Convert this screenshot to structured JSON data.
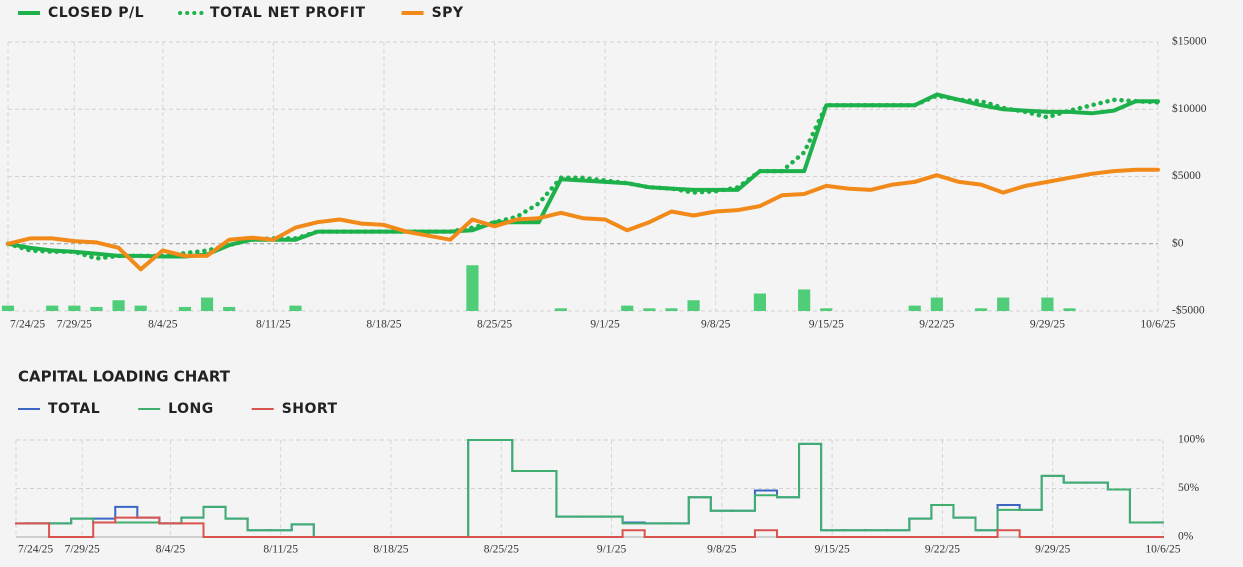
{
  "chart_data": [
    {
      "type": "line",
      "x": [
        "7/24/25",
        "7/25/25",
        "7/28/25",
        "7/29/25",
        "7/30/25",
        "7/31/25",
        "8/1/25",
        "8/4/25",
        "8/5/25",
        "8/6/25",
        "8/7/25",
        "8/8/25",
        "8/11/25",
        "8/12/25",
        "8/13/25",
        "8/14/25",
        "8/15/25",
        "8/18/25",
        "8/19/25",
        "8/20/25",
        "8/21/25",
        "8/22/25",
        "8/25/25",
        "8/26/25",
        "8/27/25",
        "8/28/25",
        "8/29/25",
        "9/1/25",
        "9/2/25",
        "9/3/25",
        "9/4/25",
        "9/5/25",
        "9/8/25",
        "9/9/25",
        "9/10/25",
        "9/11/25",
        "9/12/25",
        "9/15/25",
        "9/16/25",
        "9/17/25",
        "9/18/25",
        "9/19/25",
        "9/22/25",
        "9/23/25",
        "9/24/25",
        "9/25/25",
        "9/26/25",
        "9/29/25",
        "9/30/25",
        "10/1/25",
        "10/2/25",
        "10/3/25",
        "10/6/25"
      ],
      "xticks": [
        "7/24/25",
        "7/29/25",
        "8/4/25",
        "8/11/25",
        "8/18/25",
        "8/25/25",
        "9/1/25",
        "9/8/25",
        "9/15/25",
        "9/22/25",
        "9/29/25",
        "10/6/25"
      ],
      "ylim": [
        -5000,
        15000
      ],
      "yticks": [
        {
          "value": -5000,
          "label": "-$5000"
        },
        {
          "value": 0,
          "label": "$0"
        },
        {
          "value": 5000,
          "label": "$5000"
        },
        {
          "value": 10000,
          "label": "$10000"
        },
        {
          "value": 15000,
          "label": "$15000"
        }
      ],
      "grid": true,
      "series": [
        {
          "name": "CLOSED P/L",
          "color": "#1db14b",
          "line_style": "solid",
          "values": [
            0,
            -300,
            -500,
            -600,
            -750,
            -900,
            -900,
            -950,
            -950,
            -800,
            -100,
            300,
            300,
            300,
            900,
            900,
            900,
            900,
            900,
            900,
            900,
            1000,
            1600,
            1600,
            1600,
            4800,
            4700,
            4600,
            4500,
            4200,
            4100,
            4000,
            4000,
            4000,
            5400,
            5400,
            5400,
            10300,
            10300,
            10300,
            10300,
            10300,
            11100,
            10700,
            10300,
            10000,
            9900,
            9800,
            9800,
            9700,
            9900,
            10600,
            10600
          ]
        },
        {
          "name": "TOTAL NET PROFIT",
          "color": "#1db14b",
          "line_style": "dotted",
          "values": [
            0,
            -500,
            -600,
            -600,
            -1100,
            -900,
            -900,
            -900,
            -700,
            -500,
            -100,
            300,
            400,
            400,
            900,
            900,
            900,
            900,
            900,
            900,
            900,
            1200,
            1600,
            2000,
            3000,
            4900,
            4900,
            4700,
            4500,
            4200,
            4100,
            3800,
            3900,
            4200,
            5400,
            5400,
            6800,
            10300,
            10300,
            10300,
            10300,
            10300,
            11000,
            10700,
            10600,
            10100,
            9800,
            9400,
            9900,
            10300,
            10700,
            10600,
            10500
          ]
        },
        {
          "name": "SPY",
          "color": "#f28a1a",
          "line_style": "solid",
          "values": [
            0,
            400,
            400,
            200,
            100,
            -300,
            -1900,
            -500,
            -900,
            -900,
            300,
            450,
            300,
            1200,
            1600,
            1800,
            1500,
            1400,
            900,
            600,
            300,
            1800,
            1300,
            1800,
            1900,
            2300,
            1900,
            1800,
            1000,
            1600,
            2400,
            2100,
            2400,
            2500,
            2800,
            3600,
            3700,
            4300,
            4100,
            4000,
            4400,
            4600,
            5100,
            4600,
            4400,
            3800,
            4300,
            4600,
            4900,
            5200,
            5400,
            5500,
            5500
          ]
        },
        {
          "type": "bar",
          "color": "#4fcd78",
          "values": [
            -4600,
            null,
            -4600,
            -4600,
            -4700,
            -4200,
            -4600,
            null,
            -4700,
            -4000,
            -4700,
            null,
            null,
            -4600,
            null,
            null,
            null,
            null,
            null,
            null,
            null,
            -1600,
            null,
            null,
            null,
            -4800,
            null,
            null,
            -4600,
            -4800,
            -4800,
            -4200,
            null,
            null,
            -3700,
            null,
            -3400,
            -4800,
            null,
            null,
            null,
            -4600,
            -4000,
            null,
            -4800,
            -4000,
            null,
            -4000,
            -4800,
            null,
            null,
            null,
            null
          ]
        }
      ]
    },
    {
      "type": "step",
      "title": "CAPITAL LOADING CHART",
      "x": [
        "7/24/25",
        "7/25/25",
        "7/28/25",
        "7/29/25",
        "7/30/25",
        "7/31/25",
        "8/1/25",
        "8/4/25",
        "8/5/25",
        "8/6/25",
        "8/7/25",
        "8/8/25",
        "8/11/25",
        "8/12/25",
        "8/13/25",
        "8/14/25",
        "8/15/25",
        "8/18/25",
        "8/19/25",
        "8/20/25",
        "8/21/25",
        "8/22/25",
        "8/25/25",
        "8/26/25",
        "8/27/25",
        "8/28/25",
        "8/29/25",
        "9/1/25",
        "9/2/25",
        "9/3/25",
        "9/4/25",
        "9/5/25",
        "9/8/25",
        "9/9/25",
        "9/10/25",
        "9/11/25",
        "9/12/25",
        "9/15/25",
        "9/16/25",
        "9/17/25",
        "9/18/25",
        "9/19/25",
        "9/22/25",
        "9/23/25",
        "9/24/25",
        "9/25/25",
        "9/26/25",
        "9/29/25",
        "9/30/25",
        "10/1/25",
        "10/2/25",
        "10/3/25",
        "10/6/25"
      ],
      "xticks": [
        "7/24/25",
        "7/29/25",
        "8/4/25",
        "8/11/25",
        "8/18/25",
        "8/25/25",
        "9/1/25",
        "9/8/25",
        "9/15/25",
        "9/22/25",
        "9/29/25",
        "10/6/25"
      ],
      "ylim": [
        0,
        100
      ],
      "yticks": [
        {
          "value": 0,
          "label": "0%"
        },
        {
          "value": 50,
          "label": "50%"
        },
        {
          "value": 100,
          "label": "100%"
        }
      ],
      "grid": true,
      "series": [
        {
          "name": "TOTAL",
          "color": "#3b66c4",
          "values": [
            14,
            14,
            14,
            19,
            19,
            31,
            20,
            14,
            20,
            31,
            19,
            7,
            7,
            13,
            0,
            0,
            0,
            0,
            0,
            0,
            0,
            100,
            100,
            68,
            68,
            21,
            21,
            21,
            15,
            14,
            14,
            41,
            27,
            27,
            48,
            41,
            96,
            7,
            7,
            7,
            7,
            19,
            33,
            20,
            7,
            33,
            28,
            63,
            56,
            56,
            49,
            15,
            15
          ]
        },
        {
          "name": "LONG",
          "color": "#3fae6e",
          "values": [
            14,
            14,
            14,
            19,
            15,
            15,
            15,
            14,
            20,
            31,
            19,
            7,
            7,
            13,
            0,
            0,
            0,
            0,
            0,
            0,
            0,
            100,
            100,
            68,
            68,
            21,
            21,
            21,
            14,
            14,
            14,
            41,
            27,
            27,
            43,
            41,
            96,
            7,
            7,
            7,
            7,
            19,
            33,
            20,
            7,
            28,
            28,
            63,
            56,
            56,
            49,
            15,
            15
          ]
        },
        {
          "name": "SHORT",
          "color": "#d9534f",
          "values": [
            14,
            14,
            0,
            0,
            15,
            20,
            20,
            14,
            14,
            0,
            0,
            0,
            0,
            0,
            0,
            0,
            0,
            0,
            0,
            0,
            0,
            0,
            0,
            0,
            0,
            0,
            0,
            0,
            7,
            0,
            0,
            0,
            0,
            0,
            7,
            0,
            0,
            0,
            0,
            0,
            0,
            0,
            0,
            0,
            0,
            7,
            0,
            0,
            0,
            0,
            0,
            0,
            0
          ]
        }
      ]
    }
  ]
}
